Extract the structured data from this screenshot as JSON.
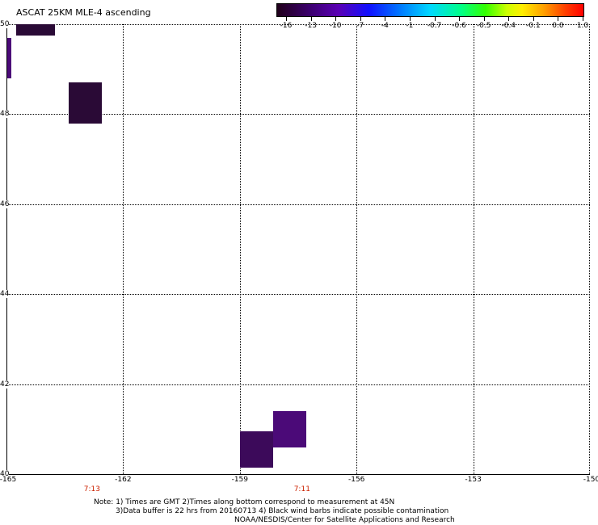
{
  "title": "ASCAT 25KM MLE-4 ascending",
  "colorbar": {
    "labels": [
      "-16",
      "-13",
      "-10",
      "-7",
      "-4",
      "-1",
      "-0.7",
      "-0.6",
      "-0.5",
      "-0.4",
      "-0.1",
      "0.0",
      "1.0"
    ]
  },
  "map": {
    "lon_range": [
      -165,
      -150
    ],
    "lat_range": [
      40,
      50
    ],
    "lat_ticks": [
      "50",
      "48",
      "46",
      "44",
      "42",
      "40"
    ],
    "lon_ticks": [
      "-165",
      "-162",
      "-159",
      "-156",
      "-153",
      "-150"
    ],
    "pass_times": [
      {
        "label": "7:13",
        "lon": -162.8
      },
      {
        "label": "7:11",
        "lon": -157.4
      }
    ],
    "tiles": [
      {
        "lon0": -164.75,
        "lon1": -163.75,
        "lat0": 49.75,
        "lat1": 50.1,
        "color": "#2a0a36"
      },
      {
        "lon0": -165.0,
        "lon1": -164.87,
        "lat0": 48.8,
        "lat1": 49.7,
        "color": "#4b0a78"
      },
      {
        "lon0": -163.4,
        "lon1": -162.55,
        "lat0": 47.8,
        "lat1": 48.7,
        "color": "#2a0a36"
      },
      {
        "lon0": -159.0,
        "lon1": -158.15,
        "lat0": 40.15,
        "lat1": 40.95,
        "color": "#3c0a5a"
      },
      {
        "lon0": -158.15,
        "lon1": -157.3,
        "lat0": 40.6,
        "lat1": 41.4,
        "color": "#4b0a78"
      }
    ]
  },
  "notes": [
    "Note: 1) Times are GMT 2)Times along bottom correspond to measurement at 45N",
    "3)Data buffer is 22 hrs from 20160713 4) Black wind barbs indicate possible contamination",
    "NOAA/NESDIS/Center for Satellite Applications and Research"
  ]
}
